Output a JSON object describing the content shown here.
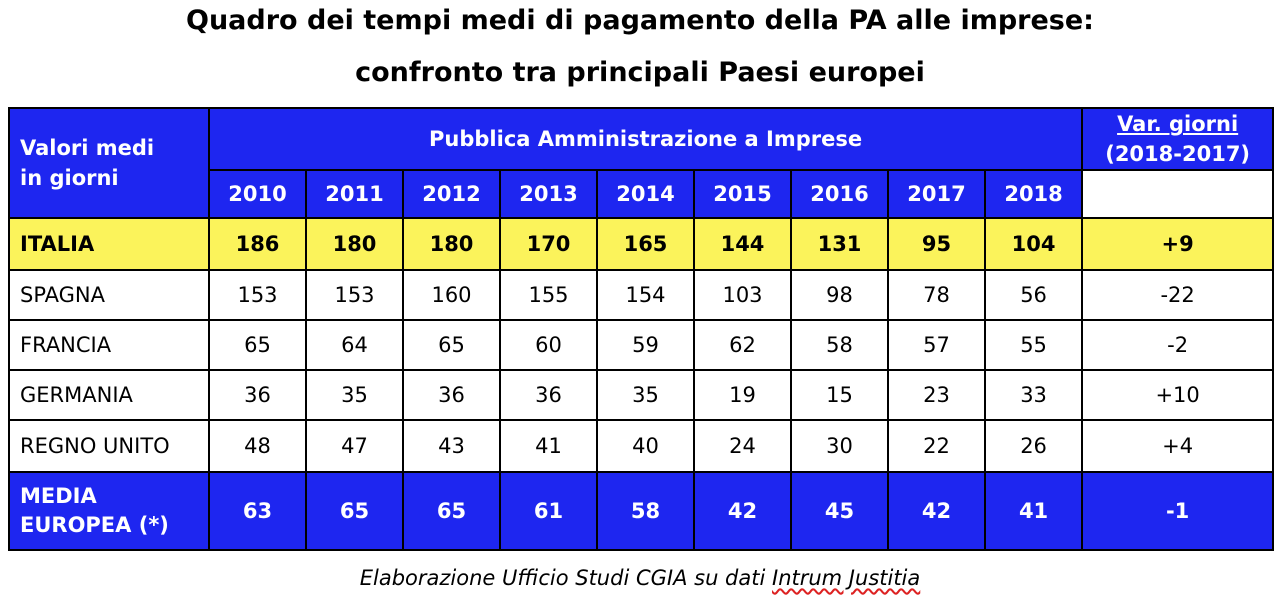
{
  "title_line1": "Quadro dei tempi medi di pagamento della PA alle imprese:",
  "title_line2": "confronto tra principali Paesi europei",
  "header": {
    "row_label_line1": "Valori medi",
    "row_label_line2": "in giorni",
    "group_label": "Pubblica Amministrazione a Imprese",
    "var_label_line1": "Var. giorni",
    "var_label_line2": "(2018-2017)"
  },
  "source_prefix": "Elaborazione Ufficio Studi CGIA su dati ",
  "source_name": "Intrum Justitia",
  "colors": {
    "header_blue": "#1e26f0",
    "highlight_yellow": "#fbf35b"
  },
  "chart_data": {
    "type": "table",
    "years": [
      "2010",
      "2011",
      "2012",
      "2013",
      "2014",
      "2015",
      "2016",
      "2017",
      "2018"
    ],
    "rows": [
      {
        "country": "ITALIA",
        "values": [
          186,
          180,
          180,
          170,
          165,
          144,
          131,
          95,
          104
        ],
        "var": "+9"
      },
      {
        "country": "SPAGNA",
        "values": [
          153,
          153,
          160,
          155,
          154,
          103,
          98,
          78,
          56
        ],
        "var": "-22"
      },
      {
        "country": "FRANCIA",
        "values": [
          65,
          64,
          65,
          60,
          59,
          62,
          58,
          57,
          55
        ],
        "var": "-2"
      },
      {
        "country": "GERMANIA",
        "values": [
          36,
          35,
          36,
          36,
          35,
          19,
          15,
          23,
          33
        ],
        "var": "+10"
      },
      {
        "country": "REGNO UNITO",
        "values": [
          48,
          47,
          43,
          41,
          40,
          24,
          30,
          22,
          26
        ],
        "var": "+4"
      }
    ],
    "media": {
      "label_line1": "MEDIA",
      "label_line2": "EUROPEA (*)",
      "values": [
        63,
        65,
        65,
        61,
        58,
        42,
        45,
        42,
        41
      ],
      "var": "-1"
    }
  }
}
